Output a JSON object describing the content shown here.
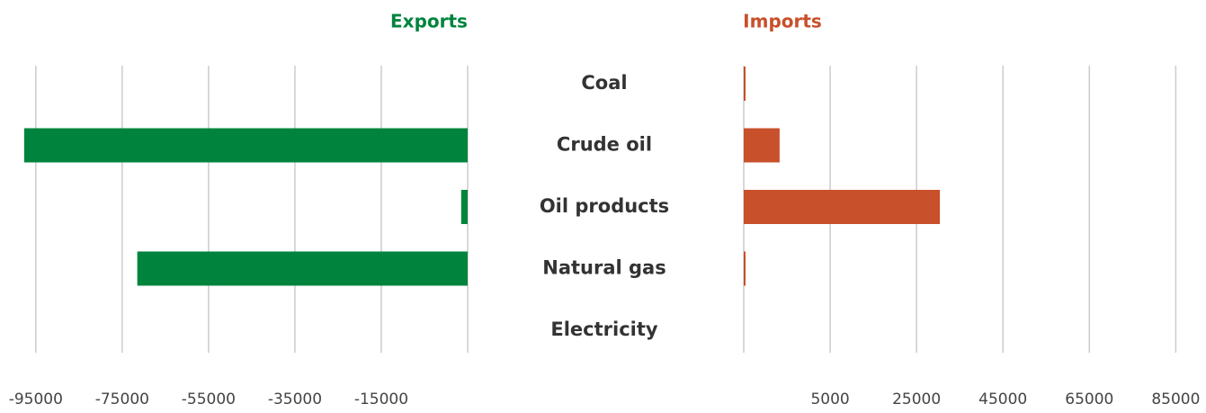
{
  "chart_data": {
    "type": "butterfly-bar",
    "categories": [
      "Coal",
      "Crude oil",
      "Oil products",
      "Natural gas",
      "Electricity"
    ],
    "series": [
      {
        "name": "Exports",
        "color": "#00843d",
        "values": [
          null,
          -97700,
          3500,
          -71500,
          null
        ]
      },
      {
        "name": "Imports",
        "color": "#c8502b",
        "values": [
          -14600,
          -6700,
          30400,
          -14600,
          null
        ]
      }
    ],
    "xlim": [
      -101000,
      5000
    ],
    "xticks": [
      -95000,
      -75000,
      -55000,
      -35000,
      -15000
    ],
    "x2lim": [
      -15000,
      92000
    ],
    "x2ticks": [
      5000,
      25000,
      45000,
      65000,
      85000
    ],
    "grid": true
  }
}
